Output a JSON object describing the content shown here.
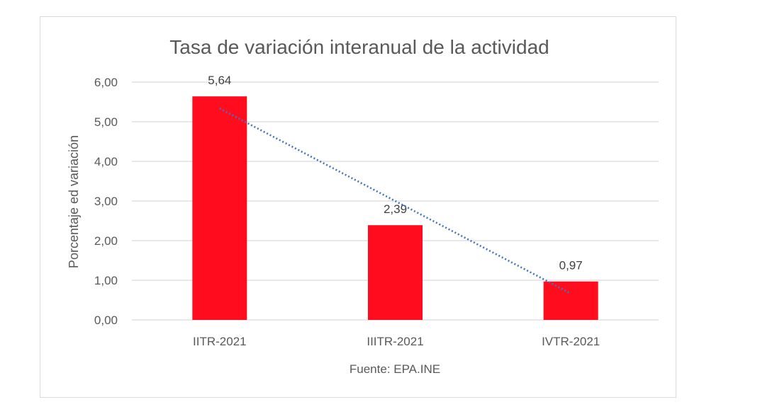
{
  "chart_data": {
    "type": "bar",
    "title": "Tasa de variación interanual de la actividad",
    "categories": [
      "IITR-2021",
      "IIITR-2021",
      "IVTR-2021"
    ],
    "values": [
      5.64,
      2.39,
      0.97
    ],
    "value_labels": [
      "5,64",
      "2,39",
      "0,97"
    ],
    "ylabel": "Porcentaje ed variación",
    "xlabel": "Fuente: EPA.INE",
    "ylim": [
      0,
      6
    ],
    "yticks": [
      0,
      1,
      2,
      3,
      4,
      5,
      6
    ],
    "ytick_labels": [
      "0,00",
      "1,00",
      "2,00",
      "3,00",
      "4,00",
      "5,00",
      "6,00"
    ],
    "grid": true,
    "trendline": {
      "type": "linear",
      "style": "dotted"
    },
    "colors": {
      "bar": "#ff0d1e",
      "trend": "#4472c4",
      "grid": "#d9d9d9"
    }
  }
}
